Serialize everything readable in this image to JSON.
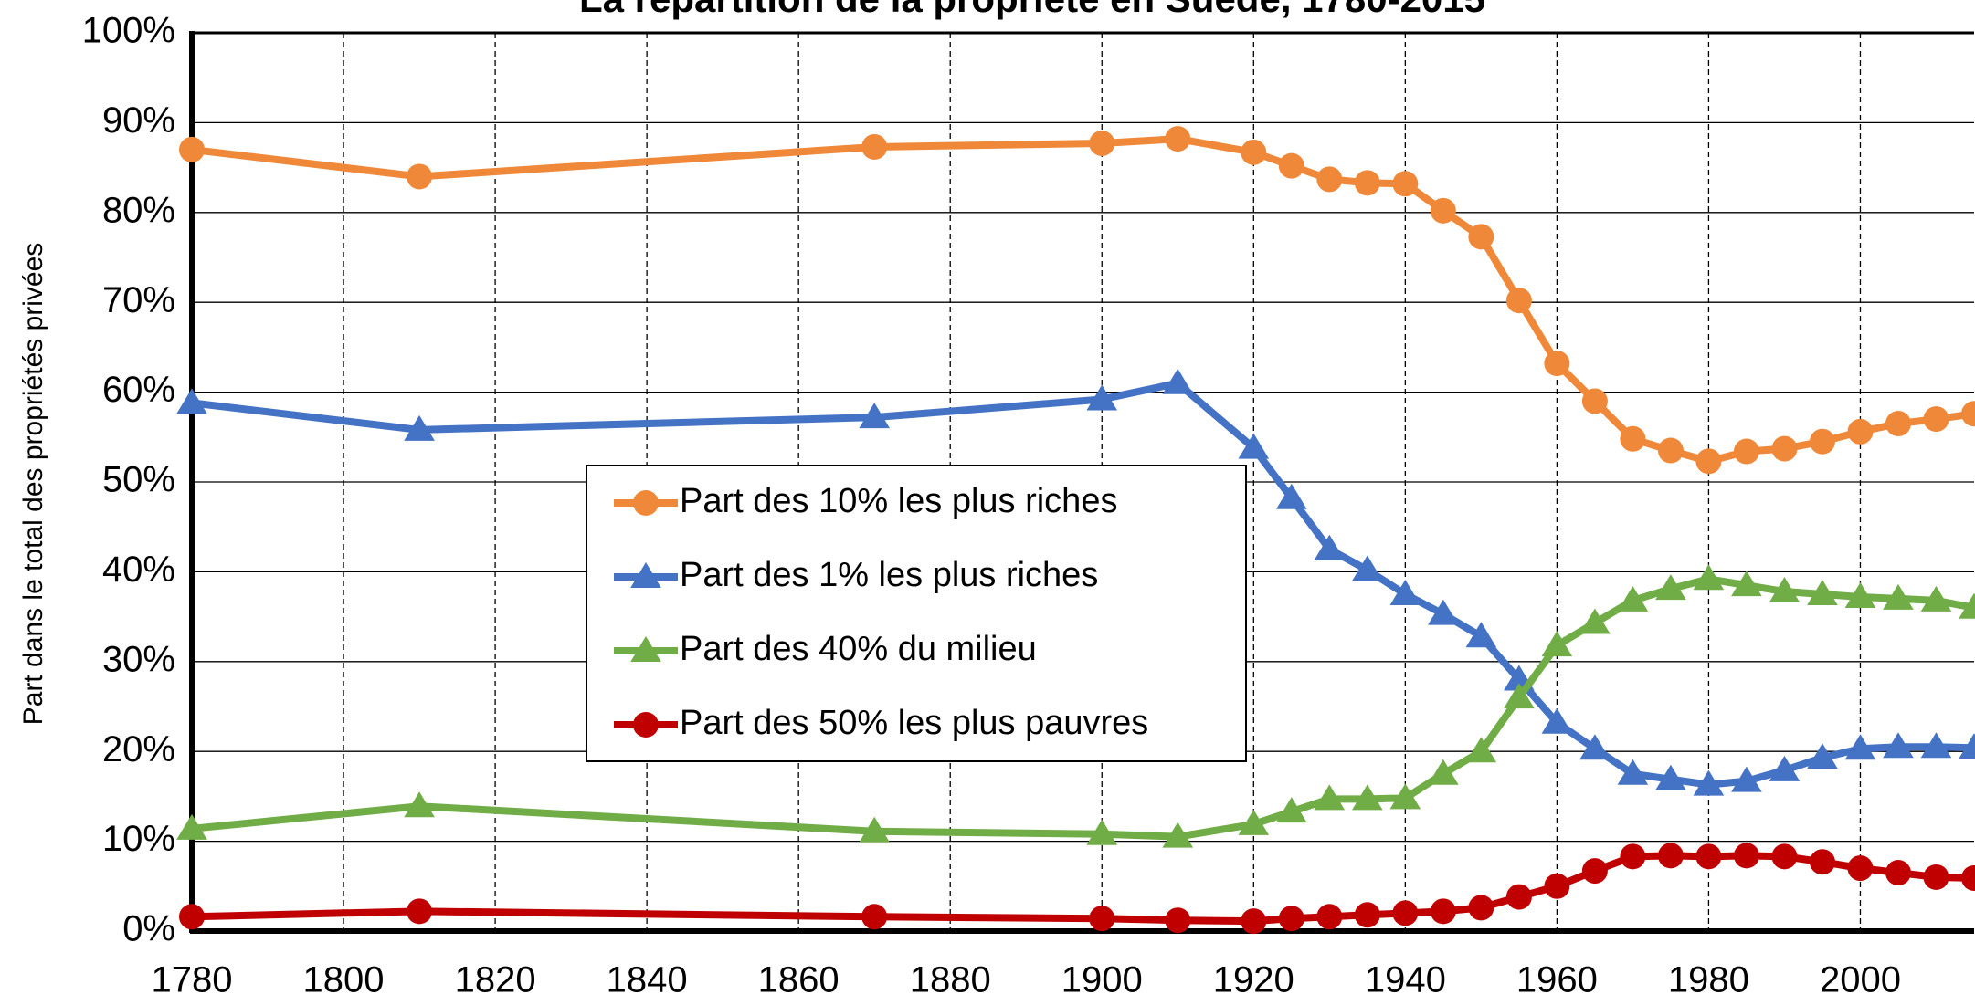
{
  "chart_data": {
    "type": "line",
    "title": "La répartition de la propriété en Suède, 1780-2015",
    "y_label": "Part dans le total des propriétés privées",
    "x": [
      1780,
      1810,
      1870,
      1900,
      1910,
      1920,
      1925,
      1930,
      1935,
      1940,
      1945,
      1950,
      1955,
      1960,
      1965,
      1970,
      1975,
      1980,
      1985,
      1990,
      1995,
      2000,
      2005,
      2010,
      2015
    ],
    "series": [
      {
        "name": "Part des 10% les plus riches",
        "color": "#f0883a",
        "marker": "circle",
        "values": [
          87,
          84,
          87.3,
          87.7,
          88.2,
          86.7,
          85.2,
          83.7,
          83.3,
          83.2,
          80.2,
          77.3,
          70.2,
          63.2,
          59,
          54.8,
          53.5,
          52.3,
          53.4,
          53.7,
          54.5,
          55.6,
          56.5,
          57,
          57.6
        ]
      },
      {
        "name": "Part des 1% les plus riches",
        "color": "#4472c4",
        "marker": "triangle",
        "values": [
          58.8,
          55.8,
          57.2,
          59.2,
          61,
          53.8,
          48.2,
          42.5,
          40.2,
          37.5,
          35.3,
          32.8,
          28,
          23.2,
          20.3,
          17.5,
          16.9,
          16.3,
          16.7,
          17.9,
          19.3,
          20.3,
          20.5,
          20.5,
          20.4
        ]
      },
      {
        "name": "Part des 40% du milieu",
        "color": "#70ad47",
        "marker": "triangle",
        "values": [
          11.4,
          13.9,
          11.1,
          10.8,
          10.5,
          11.9,
          13.3,
          14.7,
          14.7,
          14.8,
          17.5,
          20,
          26,
          31.8,
          34.3,
          36.8,
          38.1,
          39.2,
          38.5,
          37.8,
          37.5,
          37.2,
          37,
          36.8,
          36
        ]
      },
      {
        "name": "Part des 50% les plus pauvres",
        "color": "#c00000",
        "marker": "circle",
        "values": [
          1.6,
          2.2,
          1.6,
          1.4,
          1.2,
          1.1,
          1.4,
          1.6,
          1.8,
          2,
          2.2,
          2.6,
          3.8,
          5,
          6.7,
          8.3,
          8.4,
          8.3,
          8.4,
          8.3,
          7.7,
          7,
          6.5,
          6,
          5.9
        ]
      }
    ],
    "xlim": [
      1780,
      2015
    ],
    "xticks": [
      1780,
      1800,
      1820,
      1840,
      1860,
      1880,
      1900,
      1920,
      1940,
      1960,
      1980,
      2000
    ],
    "ylim": [
      0,
      100
    ],
    "yticks": [
      {
        "value": 0,
        "label": "0%"
      },
      {
        "value": 10,
        "label": "10%"
      },
      {
        "value": 20,
        "label": "20%"
      },
      {
        "value": 30,
        "label": "30%"
      },
      {
        "value": 40,
        "label": "40%"
      },
      {
        "value": 50,
        "label": "50%"
      },
      {
        "value": 60,
        "label": "60%"
      },
      {
        "value": 70,
        "label": "70%"
      },
      {
        "value": 80,
        "label": "80%"
      },
      {
        "value": 90,
        "label": "90%"
      },
      {
        "value": 100,
        "label": "100%"
      }
    ],
    "grid": true,
    "legend": "center"
  }
}
